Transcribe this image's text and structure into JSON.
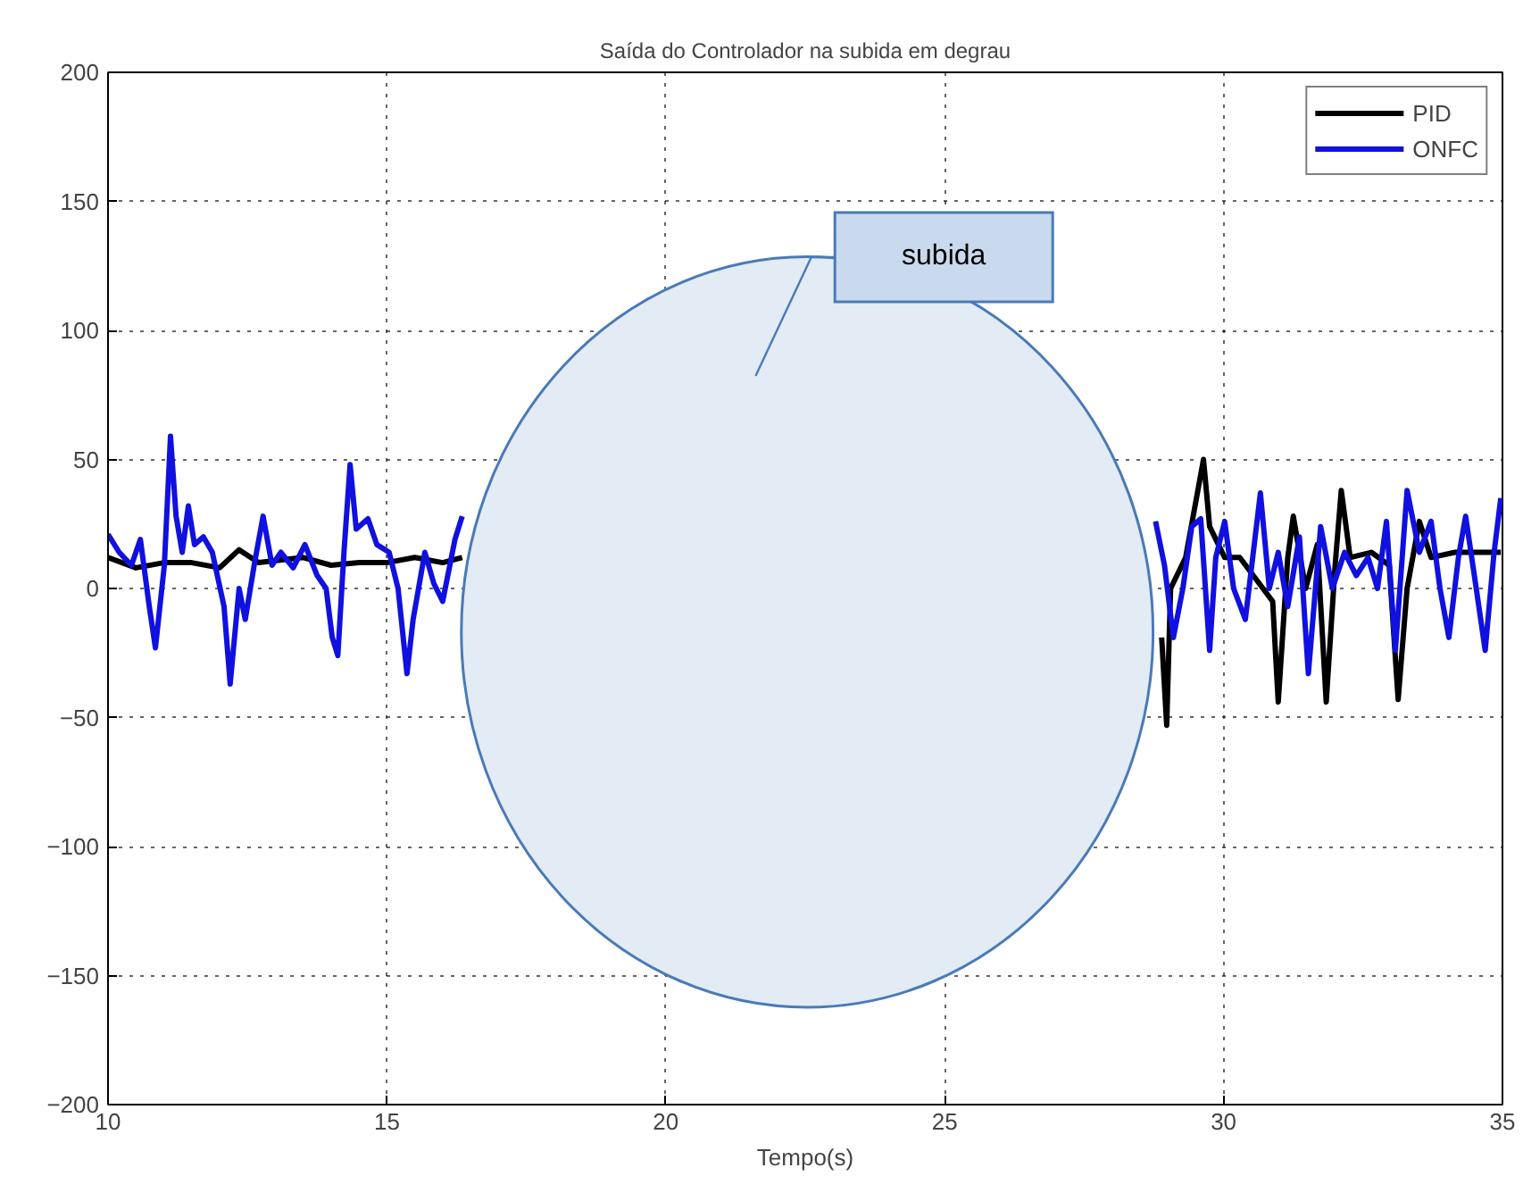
{
  "chart_data": {
    "type": "line",
    "title": "Saída do Controlador na subida em degrau",
    "xlabel": "Tempo(s)",
    "xlim": [
      10,
      35
    ],
    "xticks": [
      10,
      15,
      20,
      25,
      30,
      35
    ],
    "ylim": [
      -200,
      200
    ],
    "yticks": [
      -200,
      -150,
      -100,
      -50,
      0,
      50,
      100,
      150,
      200
    ],
    "grid": true,
    "legend": "top right",
    "line_style": "solid",
    "marker": "none",
    "annotations": [
      "subida"
    ],
    "series": [
      {
        "name": "PID",
        "color": "#000000",
        "x": [
          10.0,
          10.5,
          11.0,
          11.5,
          12.0,
          12.35,
          12.7,
          13.5,
          14.0,
          14.5,
          15.0,
          15.5,
          16.0,
          16.35,
          22,
          28.89,
          28.98,
          29.05,
          29.32,
          29.64,
          29.75,
          30.02,
          30.29,
          30.88,
          30.98,
          31.15,
          31.25,
          31.47,
          31.68,
          31.84,
          32.0,
          32.11,
          32.27,
          32.65,
          32.97,
          33.13,
          33.29,
          33.51,
          33.72,
          34.15,
          34.58,
          34.97
        ],
        "values": [
          12,
          8,
          10,
          10,
          8,
          15,
          10,
          12,
          9,
          10,
          10,
          12,
          10,
          12,
          null,
          -19,
          -53,
          0,
          12,
          50,
          24,
          12,
          12,
          -5,
          -44,
          12,
          28,
          0,
          17,
          -44,
          9,
          38,
          12,
          14,
          9,
          -43,
          0,
          26,
          12,
          14,
          14,
          14
        ]
      },
      {
        "name": "ONFC",
        "color": "#1010e0",
        "x": [
          10.0,
          10.2,
          10.42,
          10.58,
          10.74,
          10.85,
          11.01,
          11.12,
          11.22,
          11.33,
          11.44,
          11.55,
          11.71,
          11.87,
          12.08,
          12.19,
          12.35,
          12.46,
          12.62,
          12.78,
          12.94,
          13.1,
          13.32,
          13.53,
          13.75,
          13.91,
          14.02,
          14.12,
          14.23,
          14.34,
          14.45,
          14.66,
          14.82,
          15.04,
          15.2,
          15.36,
          15.47,
          15.68,
          15.84,
          16.0,
          16.22,
          16.35,
          22,
          28.78,
          28.94,
          29.1,
          29.27,
          29.43,
          29.59,
          29.75,
          29.86,
          30.02,
          30.18,
          30.39,
          30.66,
          30.82,
          30.98,
          31.15,
          31.36,
          31.52,
          31.74,
          31.95,
          32.17,
          32.38,
          32.59,
          32.76,
          32.92,
          33.08,
          33.29,
          33.51,
          33.72,
          33.88,
          34.04,
          34.21,
          34.34,
          34.53,
          34.69,
          34.85,
          34.97
        ],
        "values": [
          21,
          14,
          9,
          19,
          -7,
          -23,
          9,
          59,
          28,
          14,
          32,
          17,
          20,
          14,
          -7,
          -37,
          0,
          -12,
          9,
          28,
          9,
          14,
          8,
          17,
          5,
          0,
          -19,
          -26,
          14,
          48,
          23,
          27,
          17,
          14,
          0,
          -33,
          -12,
          14,
          2,
          -5,
          19,
          28,
          null,
          26,
          9,
          -19,
          0,
          24,
          27,
          -24,
          12,
          26,
          0,
          -12,
          37,
          0,
          14,
          -7,
          20,
          -33,
          24,
          0,
          14,
          5,
          12,
          0,
          26,
          -24,
          38,
          14,
          26,
          0,
          -19,
          12,
          28,
          0,
          -24,
          14,
          35
        ]
      }
    ]
  }
}
